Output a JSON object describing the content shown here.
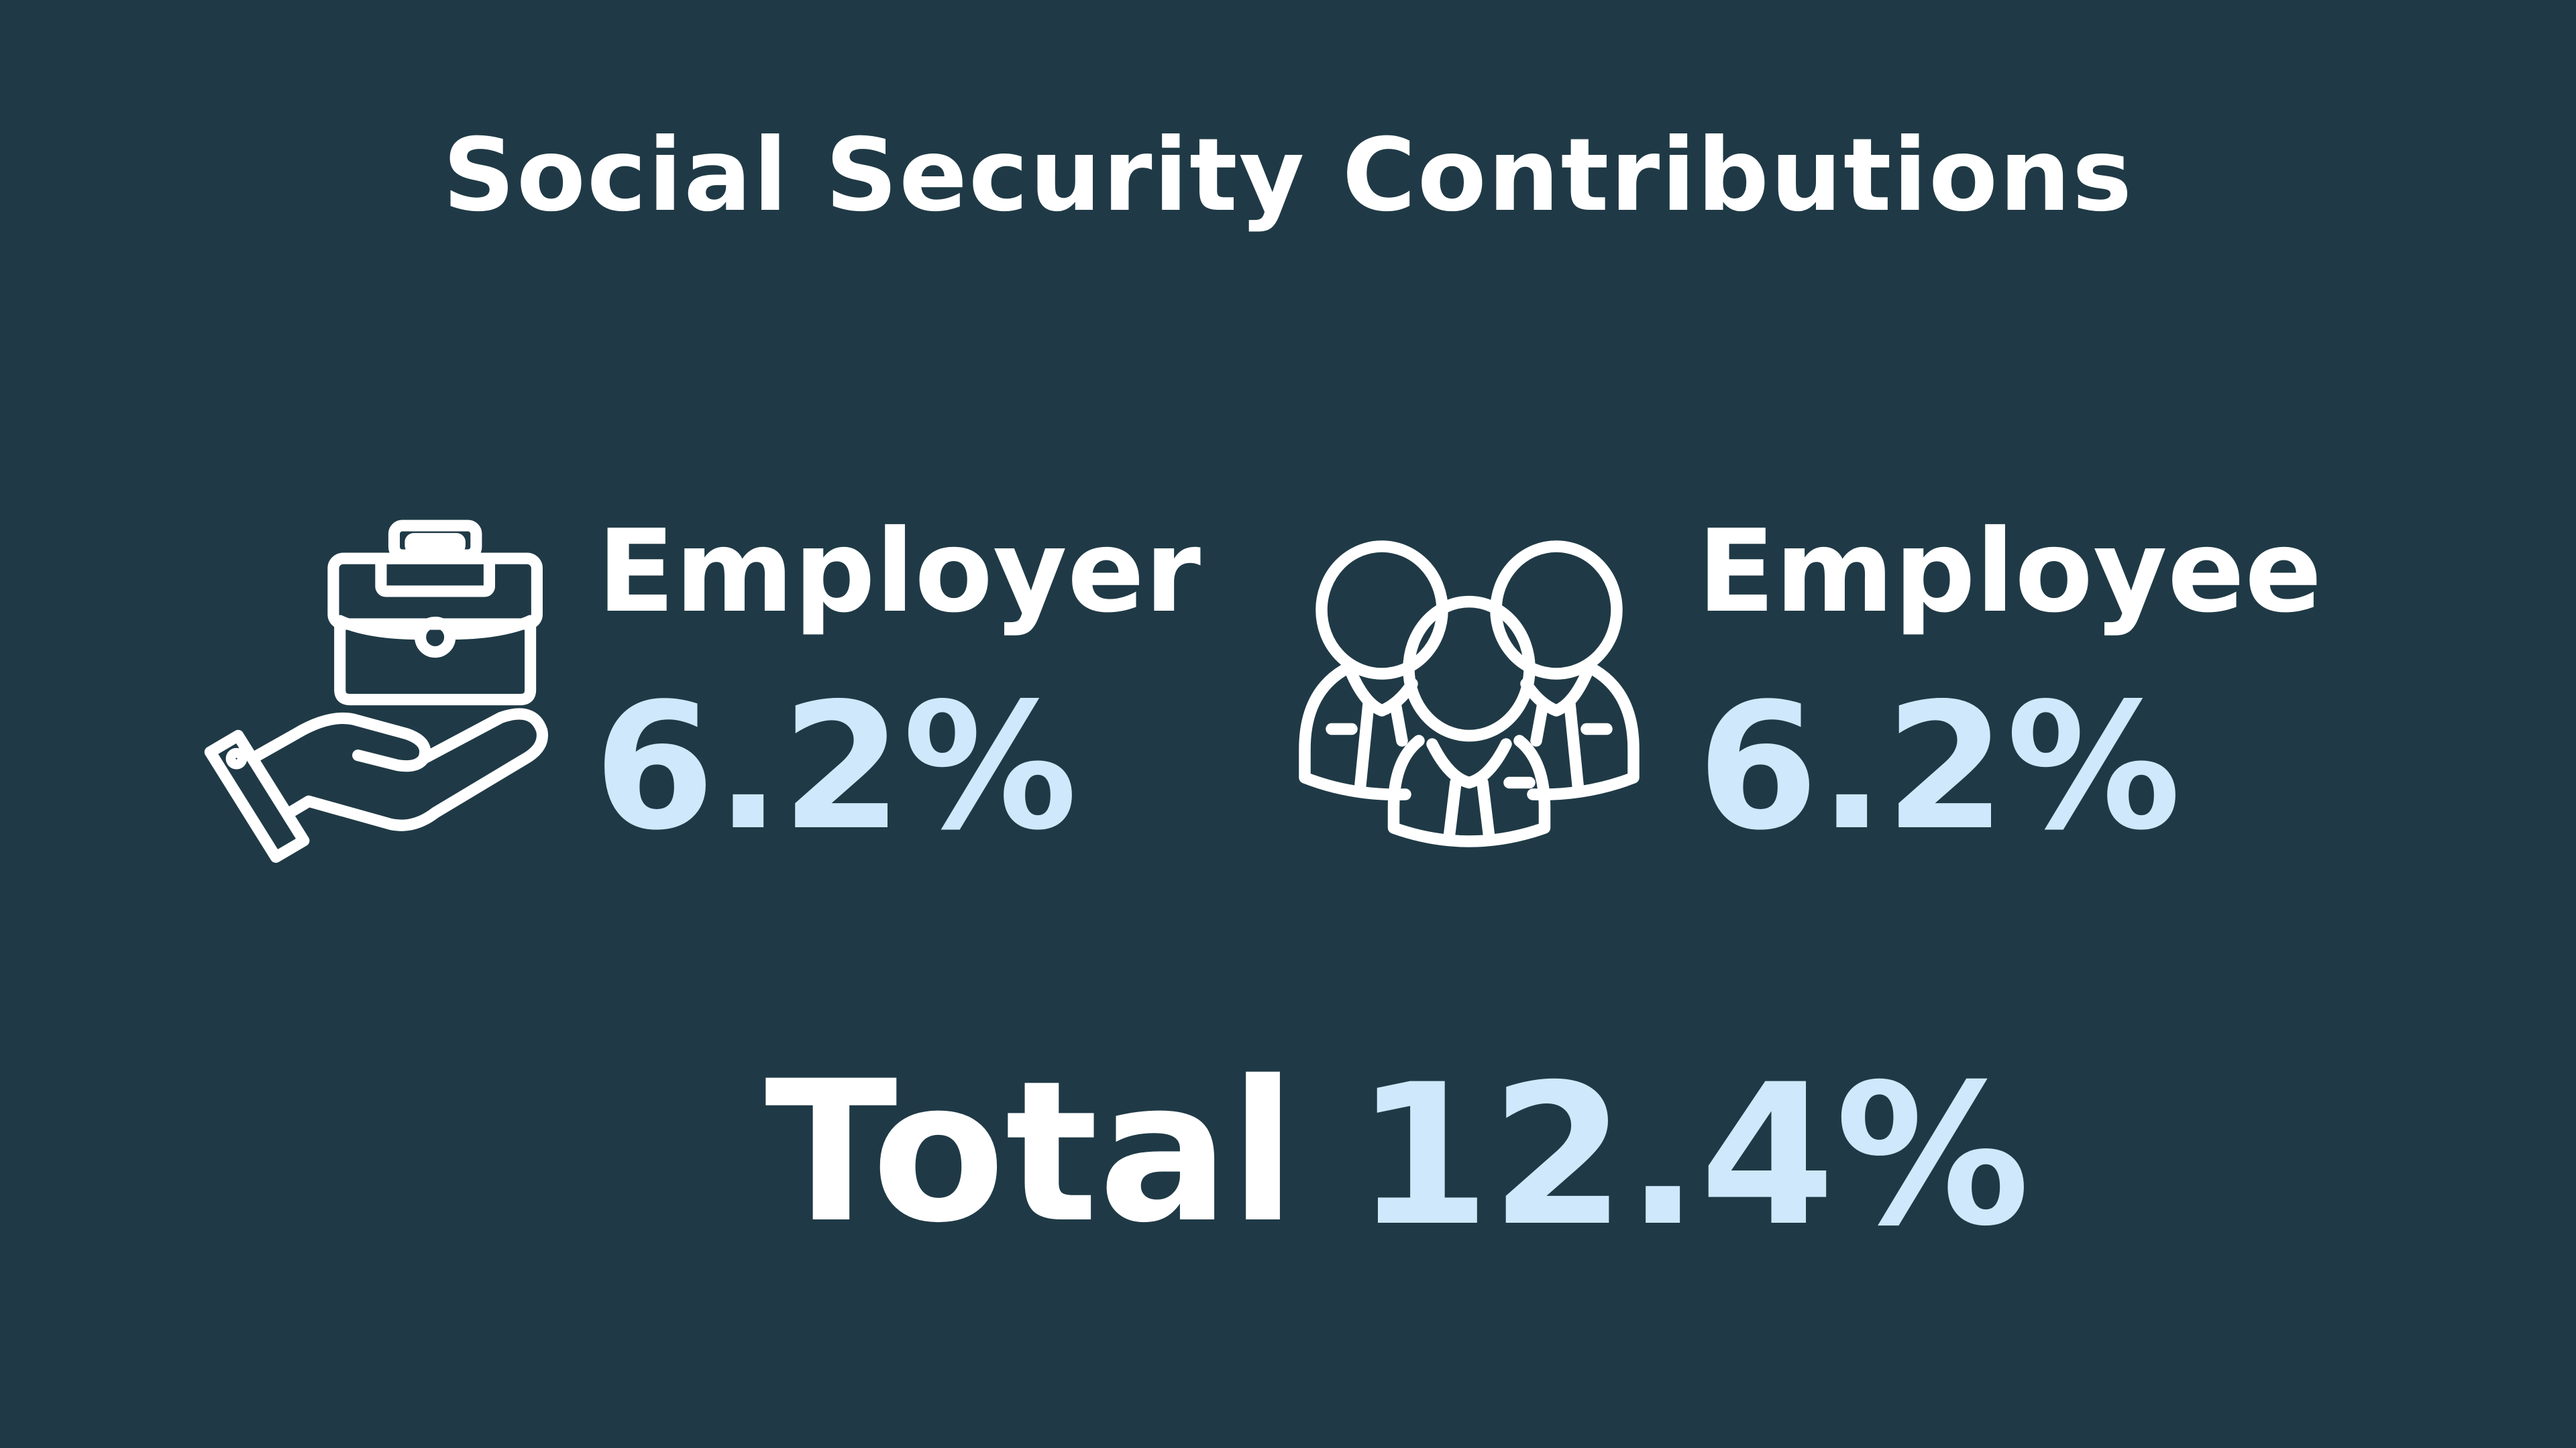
{
  "title": "Social Security Contributions",
  "employer": {
    "label": "Employer",
    "rate": "6.2%",
    "icon": "briefcase-in-hand-icon"
  },
  "employee": {
    "label": "Employee",
    "rate": "6.2%",
    "icon": "group-of-people-icon"
  },
  "total": {
    "label": "Total",
    "rate": "12.4%"
  },
  "colors": {
    "background": "#1f3a46",
    "text": "#ffffff",
    "accent": "#cfe8fb"
  }
}
